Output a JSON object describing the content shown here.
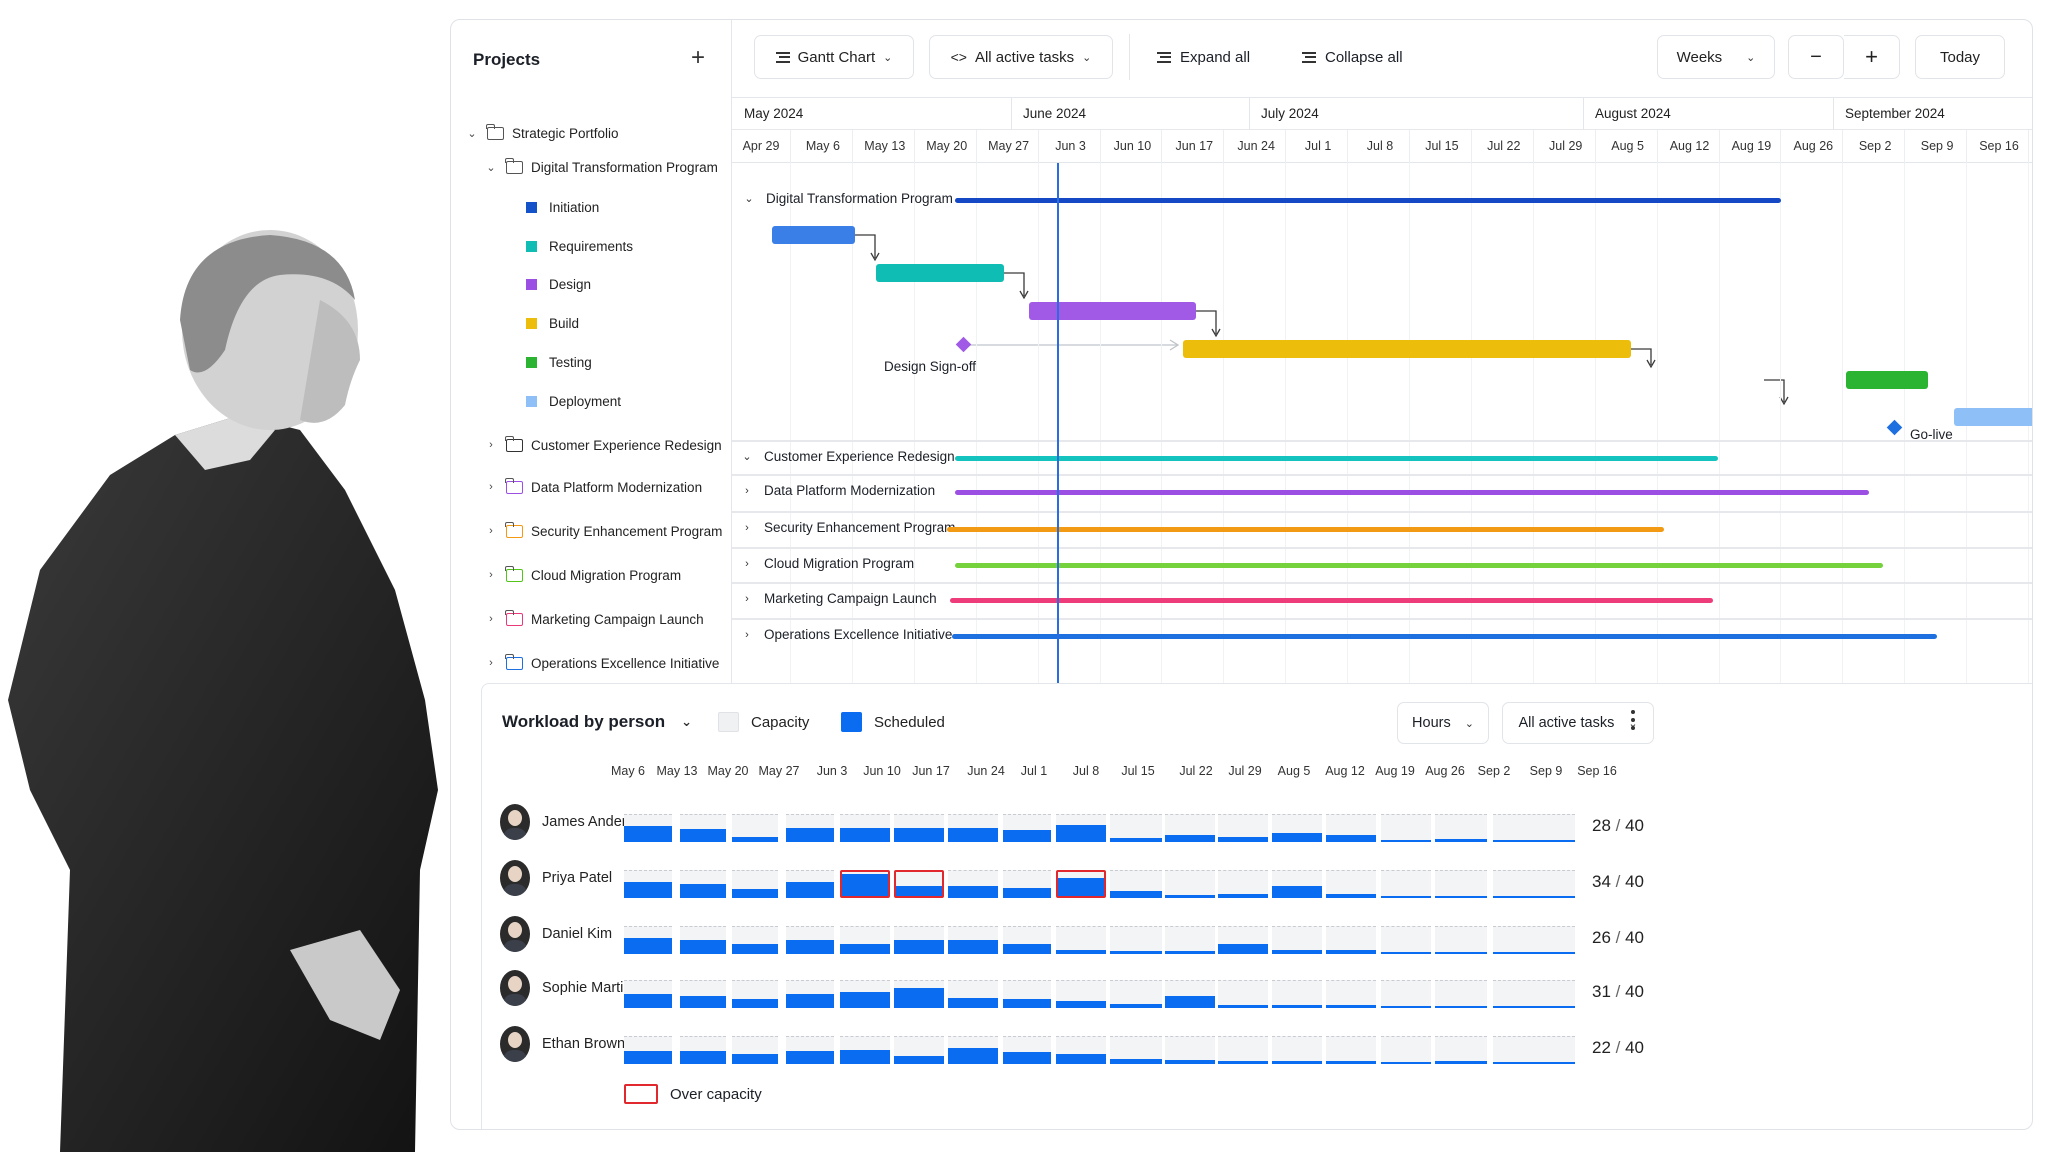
{
  "sidebar": {
    "title": "Projects",
    "add_icon": "plus-icon",
    "tree": [
      {
        "label": "Strategic Portfolio",
        "level": 0,
        "expanded": true,
        "kind": "folder"
      },
      {
        "label": "Digital Transformation Program",
        "level": 1,
        "expanded": true,
        "kind": "folder"
      },
      {
        "label": "Initiation",
        "level": 2,
        "kind": "task",
        "color": "#1452c9"
      },
      {
        "label": "Requirements",
        "level": 2,
        "kind": "task",
        "color": "#10bdb5"
      },
      {
        "label": "Design",
        "level": 2,
        "kind": "task",
        "color": "#9b4fe3"
      },
      {
        "label": "Build",
        "level": 2,
        "kind": "task",
        "color": "#ecbd0a"
      },
      {
        "label": "Testing",
        "level": 2,
        "kind": "task",
        "color": "#2bb431"
      },
      {
        "label": "Deployment",
        "level": 2,
        "kind": "task",
        "color": "#8ec0f7"
      },
      {
        "label": "Customer Experience Redesign",
        "level": 1,
        "kind": "folder",
        "color": "#333333"
      },
      {
        "label": "Data Platform Modernization",
        "level": 1,
        "kind": "folder",
        "color": "#9b4fe3"
      },
      {
        "label": "Security Enhancement Program",
        "level": 1,
        "kind": "folder",
        "color": "#f29a14"
      },
      {
        "label": "Cloud Migration Program",
        "level": 1,
        "kind": "folder",
        "color": "#52c41a"
      },
      {
        "label": "Marketing Campaign Launch",
        "level": 1,
        "kind": "folder",
        "color": "#e8397c"
      },
      {
        "label": "Operations Excellence Initiative",
        "level": 1,
        "kind": "folder",
        "color": "#1e6fe0"
      }
    ]
  },
  "toolbar": {
    "view_label": "Gantt Chart",
    "filter_label": "All active tasks",
    "expand_label": "Expand all",
    "collapse_label": "Collapse all",
    "scale_label": "Weeks",
    "zoom_out": "−",
    "zoom_in": "+",
    "today_label": "Today"
  },
  "timeline": {
    "months": [
      "May 2024",
      "June 2024",
      "July 2024",
      "August 2024",
      "September 2024"
    ],
    "weeks": [
      "Apr 29",
      "May 6",
      "May 13",
      "May 20",
      "May 27",
      "Jun 3",
      "Jun 10",
      "Jun 17",
      "Jun 24",
      "Jul 1",
      "Jul 8",
      "Jul 15",
      "Jul 22",
      "Jul 29",
      "Aug 5",
      "Aug 12",
      "Aug 19",
      "Aug 26",
      "Sep 2",
      "Sep 9",
      "Sep 16"
    ]
  },
  "gantt": {
    "expanded_project": "Digital Transformation Program",
    "milestones": [
      "Design Sign-off",
      "Go-live"
    ],
    "projects": [
      {
        "label": "Customer Experience Redesign",
        "color": "#14c3bd"
      },
      {
        "label": "Data Platform Modernization",
        "color": "#9b4fe3"
      },
      {
        "label": "Security Enhancement Program",
        "color": "#f29a14"
      },
      {
        "label": "Cloud Migration Program",
        "color": "#75d13c"
      },
      {
        "label": "Marketing Campaign Launch",
        "color": "#ee3b7a"
      },
      {
        "label": "Operations Excellence Initiative",
        "color": "#1e6fe0"
      }
    ]
  },
  "workload": {
    "title": "Workload by person",
    "legend_capacity": "Capacity",
    "legend_scheduled": "Scheduled",
    "unit_label": "Hours",
    "filter_label": "All active tasks",
    "over_capacity_label": "Over capacity",
    "weeks": [
      "May 6",
      "May 13",
      "May 20",
      "May 27",
      "Jun 3",
      "Jun 10",
      "Jun 17",
      "Jun 24",
      "Jul 1",
      "Jul 8",
      "Jul 15",
      "Jul 22",
      "Jul 29",
      "Aug 5",
      "Aug 12",
      "Aug 19",
      "Aug 26",
      "Sep 2",
      "Sep 9",
      "Sep 16"
    ],
    "people": [
      {
        "name": "James Anderson",
        "scheduled": "28",
        "capacity": "40",
        "load": [
          0.6,
          0.5,
          0.2,
          0.55,
          0.55,
          0.55,
          0.55,
          0.45,
          0.65,
          0.15,
          0.25,
          0.2,
          0.35,
          0.25,
          0,
          0.1,
          0
        ],
        "over": []
      },
      {
        "name": "Priya Patel",
        "scheduled": "34",
        "capacity": "40",
        "load": [
          0.6,
          0.55,
          0.35,
          0.6,
          0.85,
          0.4,
          0.45,
          0.4,
          0.7,
          0.25,
          0.1,
          0.15,
          0.45,
          0.15,
          0,
          0,
          0
        ],
        "over": [
          4,
          5,
          8
        ]
      },
      {
        "name": "Daniel Kim",
        "scheduled": "26",
        "capacity": "40",
        "load": [
          0.6,
          0.55,
          0.4,
          0.55,
          0.4,
          0.55,
          0.55,
          0.4,
          0.15,
          0.1,
          0.1,
          0.4,
          0.15,
          0.15,
          0,
          0,
          0
        ],
        "over": []
      },
      {
        "name": "Sophie Martin",
        "scheduled": "31",
        "capacity": "40",
        "load": [
          0.55,
          0.45,
          0.35,
          0.55,
          0.6,
          0.75,
          0.4,
          0.35,
          0.25,
          0.15,
          0.45,
          0.1,
          0.1,
          0.1,
          0,
          0,
          0
        ],
        "over": []
      },
      {
        "name": "Ethan Brown",
        "scheduled": "22",
        "capacity": "40",
        "load": [
          0.5,
          0.5,
          0.4,
          0.5,
          0.55,
          0.3,
          0.6,
          0.45,
          0.4,
          0.2,
          0.15,
          0.1,
          0.1,
          0.1,
          0,
          0.1,
          0
        ],
        "over": []
      }
    ]
  },
  "colors": {
    "today_line": "#2a6de0",
    "scheduled": "#0a6cf0",
    "over_capacity": "#e0282e",
    "initiation": "#3a7ee8",
    "requirements": "#10bdb5",
    "design": "#a05ae6",
    "build": "#ecbd0a",
    "testing": "#2bb431",
    "deployment": "#8ec0f7",
    "program_bar": "#1548c4"
  }
}
